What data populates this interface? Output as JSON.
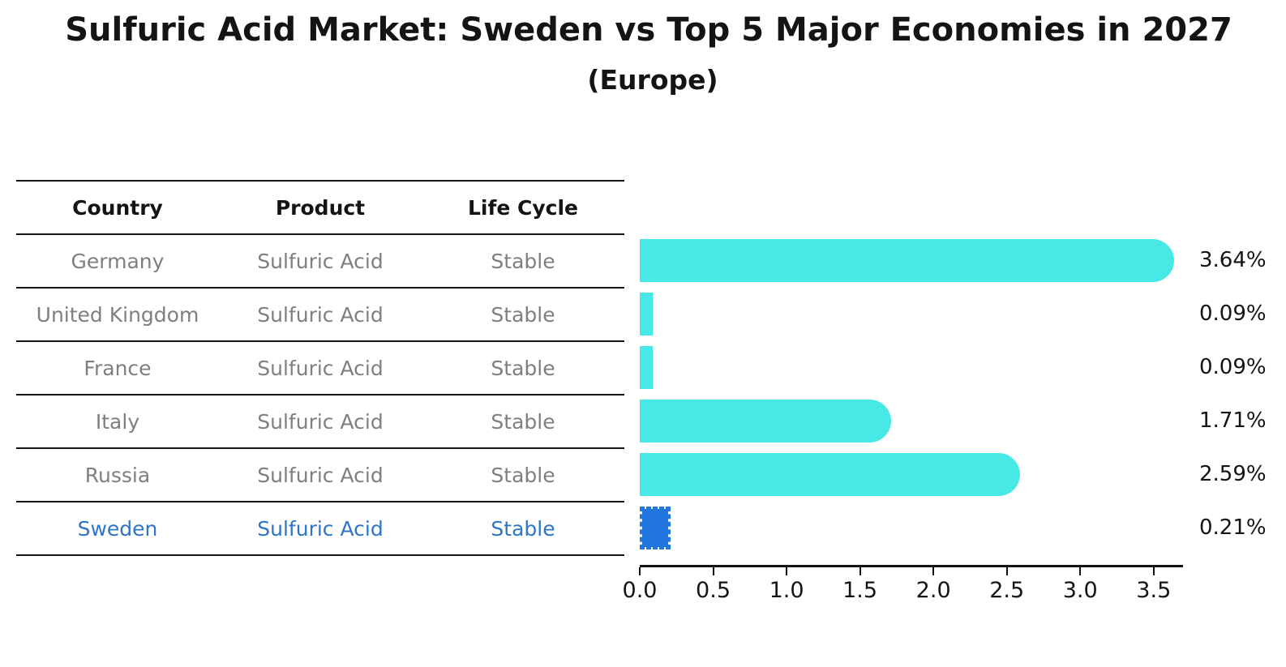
{
  "title": "Sulfuric Acid Market: Sweden vs Top 5 Major Economies in 2027",
  "subtitle": "(Europe)",
  "table": {
    "headers": [
      "Country",
      "Product",
      "Life Cycle"
    ],
    "rows": [
      {
        "country": "Germany",
        "product": "Sulfuric Acid",
        "life_cycle": "Stable",
        "highlight": false
      },
      {
        "country": "United Kingdom",
        "product": "Sulfuric Acid",
        "life_cycle": "Stable",
        "highlight": false
      },
      {
        "country": "France",
        "product": "Sulfuric Acid",
        "life_cycle": "Stable",
        "highlight": false
      },
      {
        "country": "Italy",
        "product": "Sulfuric Acid",
        "life_cycle": "Stable",
        "highlight": false
      },
      {
        "country": "Russia",
        "product": "Sulfuric Acid",
        "life_cycle": "Stable",
        "highlight": true
      }
    ],
    "highlight_row": {
      "country": "Sweden",
      "product": "Sulfuric Acid",
      "life_cycle": "Stable"
    }
  },
  "chart_data": {
    "type": "bar",
    "orientation": "horizontal",
    "title": "Sulfuric Acid Market: Sweden vs Top 5 Major Economies in 2027",
    "subtitle": "(Europe)",
    "categories": [
      "Germany",
      "United Kingdom",
      "France",
      "Italy",
      "Russia",
      "Sweden"
    ],
    "values": [
      3.64,
      0.09,
      0.09,
      1.71,
      2.59,
      0.21
    ],
    "labels": [
      "3.64%",
      "0.09%",
      "0.09%",
      "1.71%",
      "2.59%",
      "0.21%"
    ],
    "unit": "%",
    "xlim": [
      0,
      3.7
    ],
    "xticks": [
      0.0,
      0.5,
      1.0,
      1.5,
      2.0,
      2.5,
      3.0,
      3.5
    ],
    "xticklabels": [
      "0.0",
      "0.5",
      "1.0",
      "1.5",
      "2.0",
      "2.5",
      "3.0",
      "3.5"
    ],
    "highlight_category": "Sweden",
    "grid": false,
    "legend": false
  },
  "colors": {
    "bar_cyan": "#48E8E6",
    "highlight_blue": "#2176E0",
    "highlight_text": "#2E74C8",
    "row_text": "#7f7f7f",
    "ink": "#141414"
  }
}
